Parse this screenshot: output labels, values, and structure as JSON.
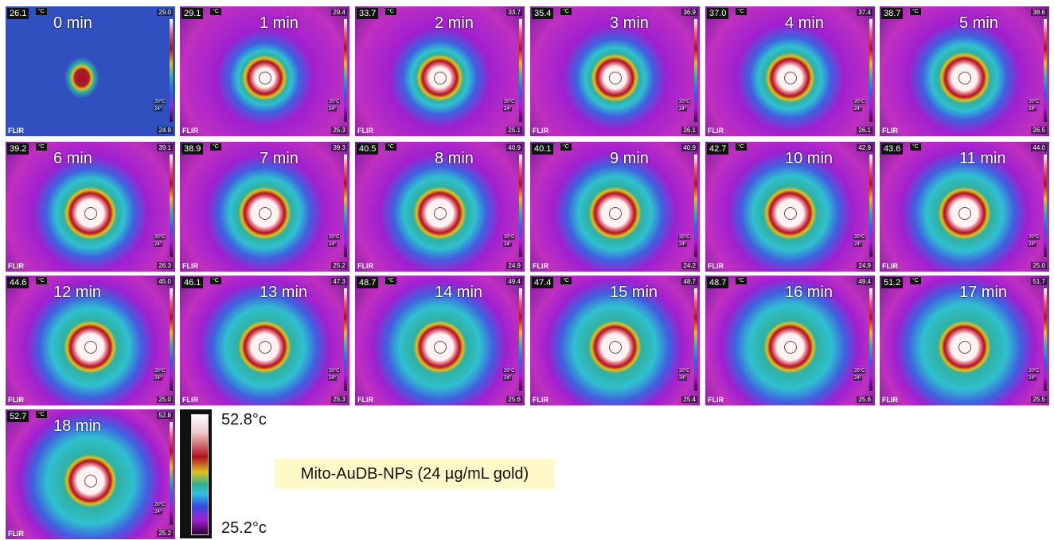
{
  "common": {
    "unit": "°C",
    "brand": "FLIR",
    "small_1": "20°C",
    "small_2": "24°"
  },
  "panels": [
    {
      "spot": "26.1",
      "time": "0 min",
      "max": "29.0",
      "min": "24.9"
    },
    {
      "spot": "29.1",
      "time": "1 min",
      "max": "29.4",
      "min": "25.3"
    },
    {
      "spot": "33.7",
      "time": "2 min",
      "max": "33.7",
      "min": "25.1"
    },
    {
      "spot": "35.4",
      "time": "3 min",
      "max": "36.9",
      "min": "26.1"
    },
    {
      "spot": "37.0",
      "time": "4 min",
      "max": "37.4",
      "min": "26.1"
    },
    {
      "spot": "38.7",
      "time": "5 min",
      "max": "38.6",
      "min": "26.5"
    },
    {
      "spot": "39.2",
      "time": "6 min",
      "max": "39.1",
      "min": "26.3"
    },
    {
      "spot": "38.9",
      "time": "7 min",
      "max": "39.3",
      "min": "25.2"
    },
    {
      "spot": "40.5",
      "time": "8 min",
      "max": "40.9",
      "min": "24.9"
    },
    {
      "spot": "40.1",
      "time": "9 min",
      "max": "40.9",
      "min": "24.2"
    },
    {
      "spot": "42.7",
      "time": "10 min",
      "max": "42.9",
      "min": "24.9"
    },
    {
      "spot": "43.6",
      "time": "11 min",
      "max": "44.0",
      "min": "25.0"
    },
    {
      "spot": "44.6",
      "time": "12 min",
      "max": "45.0",
      "min": "25.0"
    },
    {
      "spot": "46.1",
      "time": "13 min",
      "max": "47.3",
      "min": "25.3"
    },
    {
      "spot": "48.7",
      "time": "14 min",
      "max": "49.4",
      "min": "25.6"
    },
    {
      "spot": "47.4",
      "time": "15 min",
      "max": "48.7",
      "min": "25.4"
    },
    {
      "spot": "48.7",
      "time": "16 min",
      "max": "49.4",
      "min": "25.6"
    },
    {
      "spot": "51.2",
      "time": "17 min",
      "max": "51.7",
      "min": "25.5"
    },
    {
      "spot": "52.7",
      "time": "18 min",
      "max": "52.8",
      "min": "25.2"
    }
  ],
  "scale": {
    "max": "52.8°c",
    "min": "25.2°c"
  },
  "caption": "Mito-AuDB-NPs (24 µg/mL gold)"
}
